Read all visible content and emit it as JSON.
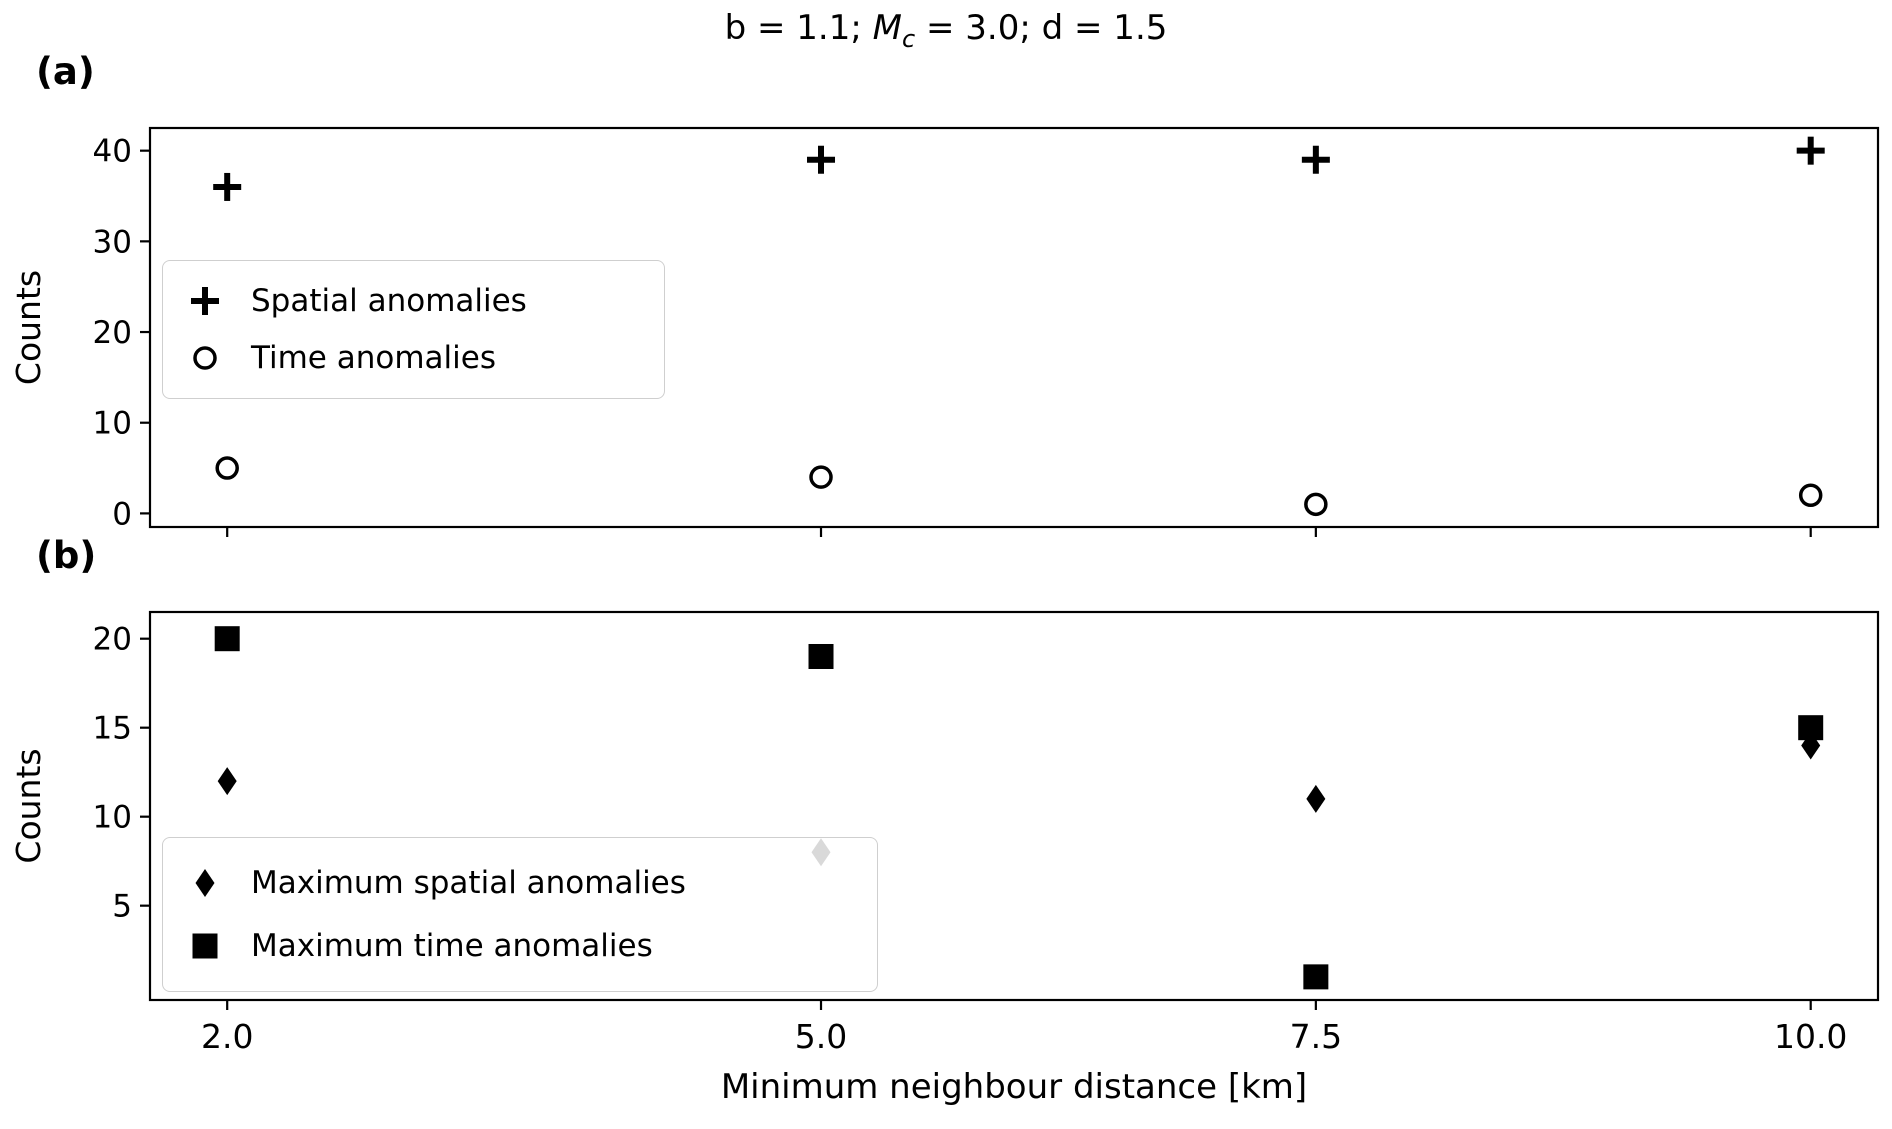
{
  "title": {
    "p1": "b = 1.1; ",
    "var": "M",
    "sub": "c",
    "p2": " = 3.0; d = 1.5"
  },
  "xlabel": "Minimum neighbour distance [km]",
  "panels": [
    {
      "tag": "(a)"
    },
    {
      "tag": "(b)"
    }
  ],
  "colors": {
    "marker": "#000000",
    "axis": "#000000",
    "legend_border": "#cfcfcf",
    "background": "#ffffff"
  },
  "chart_data": [
    {
      "type": "scatter",
      "panel": "(a)",
      "ylabel": "Counts",
      "x": [
        2.0,
        5.0,
        7.5,
        10.0
      ],
      "xlim": [
        1.61,
        10.34
      ],
      "ylim": [
        -1.5,
        42.5
      ],
      "yticks": [
        0,
        10,
        20,
        30,
        40
      ],
      "xticks": [
        2.0,
        5.0,
        7.5,
        10.0
      ],
      "xticklabels": [
        "2.0",
        "5.0",
        "7.5",
        "10.0"
      ],
      "x_tick_labels_visible": false,
      "grid": false,
      "legend_position": "center left",
      "series": [
        {
          "name": "Spatial anomalies",
          "marker": "plus",
          "values": [
            36,
            39,
            39,
            40
          ]
        },
        {
          "name": "Time anomalies",
          "marker": "circle-open",
          "values": [
            5,
            4,
            1,
            2
          ]
        }
      ]
    },
    {
      "type": "scatter",
      "panel": "(b)",
      "ylabel": "Counts",
      "x": [
        2.0,
        5.0,
        7.5,
        10.0
      ],
      "xlim": [
        1.61,
        10.34
      ],
      "ylim": [
        -0.3,
        21.5
      ],
      "yticks": [
        5,
        10,
        15,
        20
      ],
      "xticks": [
        2.0,
        5.0,
        7.5,
        10.0
      ],
      "xticklabels": [
        "2.0",
        "5.0",
        "7.5",
        "10.0"
      ],
      "x_tick_labels_visible": true,
      "grid": false,
      "legend_position": "lower left",
      "series": [
        {
          "name": "Maximum spatial anomalies",
          "marker": "diamond",
          "values": [
            12,
            8,
            11,
            14
          ]
        },
        {
          "name": "Maximum time anomalies",
          "marker": "square",
          "values": [
            20,
            19,
            1,
            15
          ]
        }
      ]
    }
  ]
}
